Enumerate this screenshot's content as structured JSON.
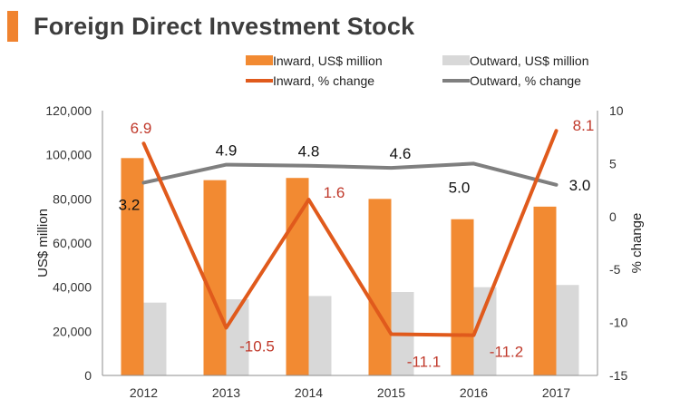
{
  "page": {
    "title": "Foreign Direct Investment Stock"
  },
  "colors": {
    "accent": "#f0832f",
    "inward_bar": "#f28a32",
    "outward_bar": "#d8d8d8",
    "inward_line": "#e05a1c",
    "outward_line": "#7f7f7f",
    "inward_label": "#c0392b",
    "axis": "#8c8c8c"
  },
  "chart_data": {
    "type": "bar+line",
    "title": "Foreign Direct Investment Stock",
    "categories": [
      "2012",
      "2013",
      "2014",
      "2015",
      "2016",
      "2017"
    ],
    "ylabel_left": "US$ million",
    "ylabel_right": "% change",
    "ylim_left": [
      0,
      120000
    ],
    "yticks_left": [
      0,
      20000,
      40000,
      60000,
      80000,
      100000,
      120000
    ],
    "ytick_labels_left": [
      "0",
      "20,000",
      "40,000",
      "60,000",
      "80,000",
      "100,000",
      "120,000"
    ],
    "ylim_right": [
      -15,
      10
    ],
    "yticks_right": [
      -15,
      -10,
      -5,
      0,
      5,
      10
    ],
    "ytick_labels_right": [
      "-15",
      "-10",
      "-5",
      "0",
      "5",
      "10"
    ],
    "legend": {
      "position": "top",
      "entries": [
        "Inward, US$ million",
        "Outward, US$ million",
        "Inward, % change",
        "Outward, % change"
      ]
    },
    "series": [
      {
        "name": "Inward, US$ million",
        "kind": "bar",
        "axis": "left",
        "values": [
          98500,
          88500,
          89500,
          80000,
          70800,
          76500
        ]
      },
      {
        "name": "Outward, US$ million",
        "kind": "bar",
        "axis": "left",
        "values": [
          33000,
          34500,
          36000,
          37800,
          40000,
          41000
        ]
      },
      {
        "name": "Inward, % change",
        "kind": "line",
        "axis": "right",
        "values": [
          6.9,
          -10.5,
          1.6,
          -11.1,
          -11.2,
          8.1
        ],
        "labels": [
          "6.9",
          "-10.5",
          "1.6",
          "-11.1",
          "-11.2",
          "8.1"
        ]
      },
      {
        "name": "Outward, % change",
        "kind": "line",
        "axis": "right",
        "values": [
          3.2,
          4.9,
          4.8,
          4.6,
          5.0,
          3.0
        ],
        "labels": [
          "3.2",
          "4.9",
          "4.8",
          "4.6",
          "5.0",
          "3.0"
        ]
      }
    ]
  }
}
